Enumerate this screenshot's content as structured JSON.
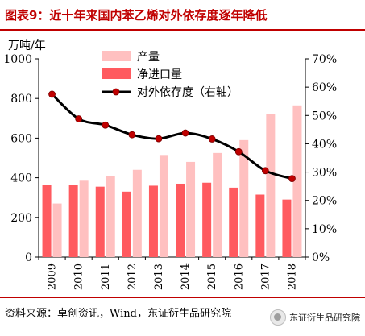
{
  "header": {
    "title": "图表9：近十年来国内苯乙烯对外依存度逐年降低"
  },
  "footer": {
    "source": "资料来源：卓创资讯，Wind，东证衍生品研究院",
    "watermark": "东证衍生品研究院"
  },
  "icons": {
    "watermark_logo": "wechat-logo-icon"
  },
  "chart_data": {
    "type": "bar",
    "ylabel": "万吨/年",
    "categories": [
      "2009",
      "2010",
      "2011",
      "2012",
      "2013",
      "2014",
      "2015",
      "2016",
      "2017",
      "2018"
    ],
    "ylim": [
      0,
      1000
    ],
    "yticks": [
      0,
      200,
      400,
      600,
      800,
      1000
    ],
    "y2lim": [
      0,
      0.7
    ],
    "y2ticks": [
      "0%",
      "10%",
      "20%",
      "30%",
      "40%",
      "50%",
      "60%",
      "70%"
    ],
    "legend_position": "top-center",
    "grid": false,
    "series": [
      {
        "name": "产量",
        "type": "bar",
        "axis": "left",
        "color": "#ffc0c0",
        "values": [
          270,
          385,
          410,
          440,
          515,
          480,
          525,
          590,
          720,
          765
        ]
      },
      {
        "name": "净进口量",
        "type": "bar",
        "axis": "left",
        "color": "#ff5a5f",
        "values": [
          365,
          365,
          355,
          330,
          360,
          370,
          375,
          350,
          315,
          290
        ]
      },
      {
        "name": "对外依存度（右轴）",
        "type": "line",
        "axis": "right",
        "color": "#000000",
        "marker_color": "#c00000",
        "values": [
          0.575,
          0.488,
          0.466,
          0.432,
          0.418,
          0.438,
          0.417,
          0.372,
          0.305,
          0.277
        ]
      }
    ]
  }
}
